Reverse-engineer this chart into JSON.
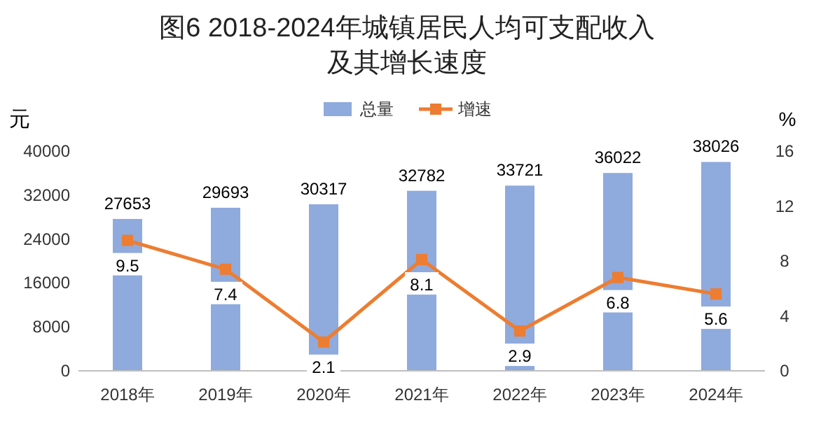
{
  "chart_data": {
    "type": "bar",
    "title": "图6  2018-2024年城镇居民人均可支配收入及其增长速度",
    "ylabel": "元",
    "y2label": "%",
    "categories": [
      "2018年",
      "2019年",
      "2020年",
      "2021年",
      "2022年",
      "2023年",
      "2024年"
    ],
    "series": [
      {
        "name": "总量",
        "color": "#8faadc",
        "values": [
          27653,
          29693,
          30317,
          32782,
          33721,
          36022,
          38026
        ]
      },
      {
        "name": "增速",
        "type": "line",
        "axis": "y2",
        "color": "#ed7d31",
        "marker": "square",
        "values": [
          9.5,
          7.4,
          2.1,
          8.1,
          2.9,
          6.8,
          5.6
        ]
      }
    ],
    "ylim": [
      0,
      40000
    ],
    "yticks": [
      0,
      8000,
      16000,
      24000,
      32000,
      40000
    ],
    "y2lim": [
      0,
      16
    ],
    "y2ticks": [
      0,
      4,
      8,
      12,
      16
    ],
    "legend": "top",
    "data_labels": true,
    "grid": false
  }
}
